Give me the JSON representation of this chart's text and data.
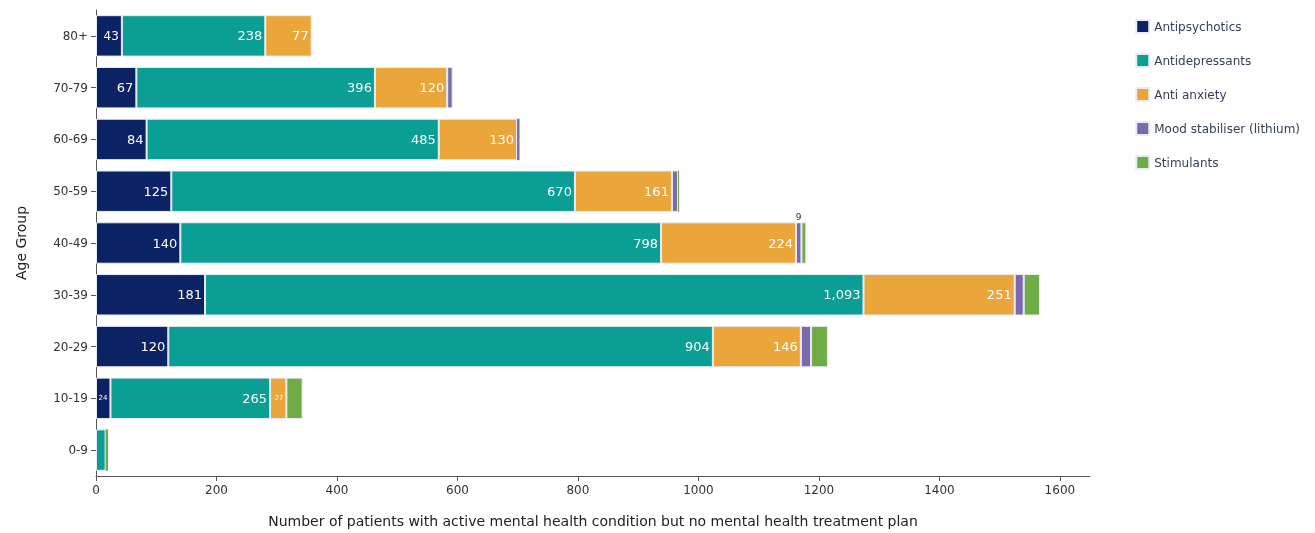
{
  "chart_data": {
    "type": "bar",
    "orientation": "horizontal",
    "stacked": true,
    "xlabel": "Number of patients with active mental health condition but no mental health treatment plan",
    "ylabel": "Age Group",
    "categories": [
      "80+",
      "70-79",
      "60-69",
      "50-59",
      "40-49",
      "30-39",
      "20-29",
      "10-19",
      "0-9"
    ],
    "series": [
      {
        "name": "Antipsychotics",
        "color": "#0b2265",
        "values": [
          43,
          67,
          84,
          125,
          140,
          181,
          120,
          24,
          null
        ],
        "value_labels": [
          "43",
          "67",
          "84",
          "125",
          "140",
          "181",
          "120",
          "24",
          null
        ]
      },
      {
        "name": "Antidepressants",
        "color": "#0a9e94",
        "values": [
          238,
          396,
          485,
          670,
          798,
          1093,
          904,
          265,
          16
        ],
        "value_labels": [
          "238",
          "396",
          "485",
          "670",
          "798",
          "1,093",
          "904",
          "265",
          null
        ]
      },
      {
        "name": "Anti anxiety",
        "color": "#eba63b",
        "values": [
          77,
          120,
          130,
          161,
          224,
          251,
          146,
          27,
          null
        ],
        "value_labels": [
          "77",
          "120",
          "130",
          "161",
          "224",
          "251",
          "146",
          "27",
          null
        ]
      },
      {
        "name": "Mood stabiliser (lithium)",
        "color": "#7b68ae",
        "values": [
          null,
          9,
          4,
          10,
          9,
          15,
          17,
          null,
          null
        ],
        "value_labels": [
          null,
          null,
          null,
          null,
          "9",
          null,
          null,
          null,
          null
        ]
      },
      {
        "name": "Stimulants",
        "color": "#6fac46",
        "values": [
          null,
          null,
          null,
          2,
          8,
          27,
          28,
          27,
          4
        ]
      }
    ],
    "xlim": [
      0,
      1650
    ],
    "xticks": [
      0,
      200,
      400,
      600,
      800,
      1000,
      1200,
      1400,
      1600
    ],
    "grid": false,
    "legend": "top right"
  }
}
